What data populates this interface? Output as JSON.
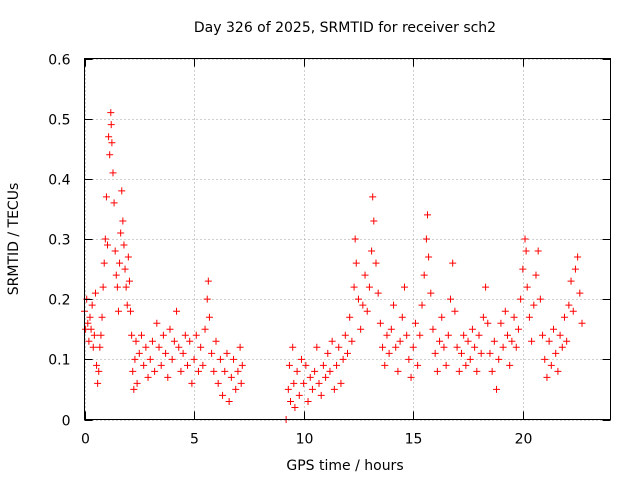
{
  "chart_data": {
    "type": "scatter",
    "title": "Day 326 of 2025, SRMTID for receiver sch2",
    "xlabel": "GPS time / hours",
    "ylabel": "SRMTID / TECUs",
    "xlim": [
      0,
      24
    ],
    "ylim": [
      0,
      0.6
    ],
    "xticks": [
      "0",
      "5",
      "10",
      "15",
      "20"
    ],
    "xtick_values": [
      0,
      5,
      10,
      15,
      20
    ],
    "yticks": [
      "0",
      "0.1",
      "0.2",
      "0.3",
      "0.4",
      "0.5",
      "0.6"
    ],
    "ytick_values": [
      0,
      0.1,
      0.2,
      0.3,
      0.4,
      0.5,
      0.6
    ],
    "grid": true,
    "marker": "+",
    "color": "#ff0000",
    "series": [
      {
        "name": "sch2",
        "points": [
          [
            0.0,
            0.18
          ],
          [
            0.05,
            0.15
          ],
          [
            0.1,
            0.2
          ],
          [
            0.15,
            0.16
          ],
          [
            0.2,
            0.13
          ],
          [
            0.25,
            0.17
          ],
          [
            0.3,
            0.15
          ],
          [
            0.35,
            0.19
          ],
          [
            0.4,
            0.12
          ],
          [
            0.45,
            0.14
          ],
          [
            0.5,
            0.21
          ],
          [
            0.55,
            0.09
          ],
          [
            0.6,
            0.06
          ],
          [
            0.65,
            0.08
          ],
          [
            0.7,
            0.12
          ],
          [
            0.75,
            0.14
          ],
          [
            0.8,
            0.17
          ],
          [
            0.85,
            0.22
          ],
          [
            0.9,
            0.26
          ],
          [
            0.95,
            0.3
          ],
          [
            1.0,
            0.37
          ],
          [
            1.05,
            0.29
          ],
          [
            1.1,
            0.47
          ],
          [
            1.15,
            0.44
          ],
          [
            1.2,
            0.51
          ],
          [
            1.22,
            0.49
          ],
          [
            1.25,
            0.46
          ],
          [
            1.3,
            0.41
          ],
          [
            1.35,
            0.36
          ],
          [
            1.4,
            0.28
          ],
          [
            1.45,
            0.24
          ],
          [
            1.5,
            0.22
          ],
          [
            1.55,
            0.18
          ],
          [
            1.6,
            0.26
          ],
          [
            1.65,
            0.31
          ],
          [
            1.7,
            0.38
          ],
          [
            1.75,
            0.33
          ],
          [
            1.8,
            0.29
          ],
          [
            1.85,
            0.25
          ],
          [
            1.9,
            0.22
          ],
          [
            1.95,
            0.19
          ],
          [
            2.0,
            0.27
          ],
          [
            2.05,
            0.23
          ],
          [
            2.1,
            0.18
          ],
          [
            2.15,
            0.14
          ],
          [
            2.2,
            0.08
          ],
          [
            2.25,
            0.05
          ],
          [
            2.3,
            0.1
          ],
          [
            2.35,
            0.13
          ],
          [
            2.4,
            0.06
          ],
          [
            2.5,
            0.11
          ],
          [
            2.6,
            0.14
          ],
          [
            2.7,
            0.09
          ],
          [
            2.8,
            0.12
          ],
          [
            2.9,
            0.07
          ],
          [
            3.0,
            0.1
          ],
          [
            3.1,
            0.13
          ],
          [
            3.2,
            0.08
          ],
          [
            3.3,
            0.16
          ],
          [
            3.4,
            0.12
          ],
          [
            3.5,
            0.09
          ],
          [
            3.6,
            0.14
          ],
          [
            3.7,
            0.11
          ],
          [
            3.8,
            0.07
          ],
          [
            3.9,
            0.15
          ],
          [
            4.0,
            0.1
          ],
          [
            4.1,
            0.13
          ],
          [
            4.2,
            0.18
          ],
          [
            4.3,
            0.12
          ],
          [
            4.4,
            0.08
          ],
          [
            4.5,
            0.11
          ],
          [
            4.6,
            0.14
          ],
          [
            4.7,
            0.09
          ],
          [
            4.8,
            0.13
          ],
          [
            4.9,
            0.06
          ],
          [
            5.0,
            0.1
          ],
          [
            5.1,
            0.14
          ],
          [
            5.2,
            0.08
          ],
          [
            5.3,
            0.12
          ],
          [
            5.4,
            0.09
          ],
          [
            5.5,
            0.15
          ],
          [
            5.6,
            0.2
          ],
          [
            5.65,
            0.23
          ],
          [
            5.7,
            0.17
          ],
          [
            5.8,
            0.11
          ],
          [
            5.9,
            0.08
          ],
          [
            6.0,
            0.13
          ],
          [
            6.1,
            0.06
          ],
          [
            6.2,
            0.1
          ],
          [
            6.3,
            0.04
          ],
          [
            6.4,
            0.08
          ],
          [
            6.5,
            0.11
          ],
          [
            6.6,
            0.03
          ],
          [
            6.7,
            0.07
          ],
          [
            6.8,
            0.1
          ],
          [
            6.9,
            0.05
          ],
          [
            7.0,
            0.08
          ],
          [
            7.1,
            0.12
          ],
          [
            7.15,
            0.06
          ],
          [
            7.2,
            0.09
          ],
          [
            9.2,
            0.0
          ],
          [
            9.3,
            0.05
          ],
          [
            9.35,
            0.09
          ],
          [
            9.4,
            0.03
          ],
          [
            9.5,
            0.12
          ],
          [
            9.55,
            0.06
          ],
          [
            9.6,
            0.02
          ],
          [
            9.7,
            0.08
          ],
          [
            9.8,
            0.04
          ],
          [
            9.9,
            0.1
          ],
          [
            10.0,
            0.06
          ],
          [
            10.1,
            0.09
          ],
          [
            10.2,
            0.03
          ],
          [
            10.3,
            0.07
          ],
          [
            10.4,
            0.05
          ],
          [
            10.5,
            0.08
          ],
          [
            10.6,
            0.12
          ],
          [
            10.7,
            0.06
          ],
          [
            10.8,
            0.04
          ],
          [
            10.9,
            0.09
          ],
          [
            11.0,
            0.07
          ],
          [
            11.1,
            0.11
          ],
          [
            11.2,
            0.08
          ],
          [
            11.3,
            0.13
          ],
          [
            11.4,
            0.05
          ],
          [
            11.5,
            0.09
          ],
          [
            11.6,
            0.12
          ],
          [
            11.7,
            0.06
          ],
          [
            11.8,
            0.1
          ],
          [
            11.9,
            0.14
          ],
          [
            12.0,
            0.11
          ],
          [
            12.1,
            0.17
          ],
          [
            12.2,
            0.13
          ],
          [
            12.3,
            0.22
          ],
          [
            12.35,
            0.3
          ],
          [
            12.4,
            0.26
          ],
          [
            12.5,
            0.2
          ],
          [
            12.6,
            0.15
          ],
          [
            12.7,
            0.19
          ],
          [
            12.8,
            0.24
          ],
          [
            12.9,
            0.18
          ],
          [
            13.0,
            0.22
          ],
          [
            13.1,
            0.28
          ],
          [
            13.15,
            0.37
          ],
          [
            13.2,
            0.33
          ],
          [
            13.3,
            0.26
          ],
          [
            13.4,
            0.21
          ],
          [
            13.5,
            0.16
          ],
          [
            13.6,
            0.12
          ],
          [
            13.7,
            0.09
          ],
          [
            13.8,
            0.14
          ],
          [
            13.9,
            0.11
          ],
          [
            14.0,
            0.15
          ],
          [
            14.1,
            0.19
          ],
          [
            14.2,
            0.12
          ],
          [
            14.3,
            0.08
          ],
          [
            14.4,
            0.13
          ],
          [
            14.5,
            0.17
          ],
          [
            14.6,
            0.22
          ],
          [
            14.7,
            0.14
          ],
          [
            14.8,
            0.1
          ],
          [
            14.9,
            0.07
          ],
          [
            15.0,
            0.12
          ],
          [
            15.1,
            0.16
          ],
          [
            15.2,
            0.09
          ],
          [
            15.3,
            0.14
          ],
          [
            15.4,
            0.19
          ],
          [
            15.5,
            0.24
          ],
          [
            15.6,
            0.3
          ],
          [
            15.65,
            0.34
          ],
          [
            15.7,
            0.27
          ],
          [
            15.8,
            0.21
          ],
          [
            15.9,
            0.15
          ],
          [
            16.0,
            0.11
          ],
          [
            16.1,
            0.08
          ],
          [
            16.2,
            0.13
          ],
          [
            16.3,
            0.17
          ],
          [
            16.4,
            0.12
          ],
          [
            16.5,
            0.09
          ],
          [
            16.6,
            0.14
          ],
          [
            16.7,
            0.2
          ],
          [
            16.8,
            0.26
          ],
          [
            16.9,
            0.18
          ],
          [
            17.0,
            0.12
          ],
          [
            17.1,
            0.08
          ],
          [
            17.2,
            0.11
          ],
          [
            17.3,
            0.14
          ],
          [
            17.4,
            0.09
          ],
          [
            17.5,
            0.13
          ],
          [
            17.6,
            0.1
          ],
          [
            17.7,
            0.15
          ],
          [
            17.8,
            0.12
          ],
          [
            17.9,
            0.08
          ],
          [
            18.0,
            0.14
          ],
          [
            18.1,
            0.11
          ],
          [
            18.2,
            0.17
          ],
          [
            18.3,
            0.22
          ],
          [
            18.4,
            0.16
          ],
          [
            18.5,
            0.11
          ],
          [
            18.6,
            0.08
          ],
          [
            18.7,
            0.13
          ],
          [
            18.8,
            0.05
          ],
          [
            18.9,
            0.1
          ],
          [
            19.0,
            0.16
          ],
          [
            19.1,
            0.12
          ],
          [
            19.2,
            0.18
          ],
          [
            19.3,
            0.14
          ],
          [
            19.4,
            0.09
          ],
          [
            19.5,
            0.13
          ],
          [
            19.6,
            0.17
          ],
          [
            19.7,
            0.12
          ],
          [
            19.8,
            0.15
          ],
          [
            19.9,
            0.2
          ],
          [
            20.0,
            0.25
          ],
          [
            20.1,
            0.3
          ],
          [
            20.15,
            0.28
          ],
          [
            20.2,
            0.22
          ],
          [
            20.3,
            0.17
          ],
          [
            20.4,
            0.13
          ],
          [
            20.5,
            0.19
          ],
          [
            20.6,
            0.24
          ],
          [
            20.7,
            0.28
          ],
          [
            20.8,
            0.2
          ],
          [
            20.9,
            0.14
          ],
          [
            21.0,
            0.1
          ],
          [
            21.1,
            0.07
          ],
          [
            21.2,
            0.13
          ],
          [
            21.3,
            0.09
          ],
          [
            21.4,
            0.15
          ],
          [
            21.5,
            0.11
          ],
          [
            21.6,
            0.08
          ],
          [
            21.7,
            0.14
          ],
          [
            21.8,
            0.12
          ],
          [
            21.9,
            0.17
          ],
          [
            22.0,
            0.13
          ],
          [
            22.1,
            0.19
          ],
          [
            22.2,
            0.23
          ],
          [
            22.3,
            0.18
          ],
          [
            22.4,
            0.25
          ],
          [
            22.5,
            0.27
          ],
          [
            22.6,
            0.21
          ],
          [
            22.7,
            0.16
          ]
        ]
      }
    ]
  }
}
